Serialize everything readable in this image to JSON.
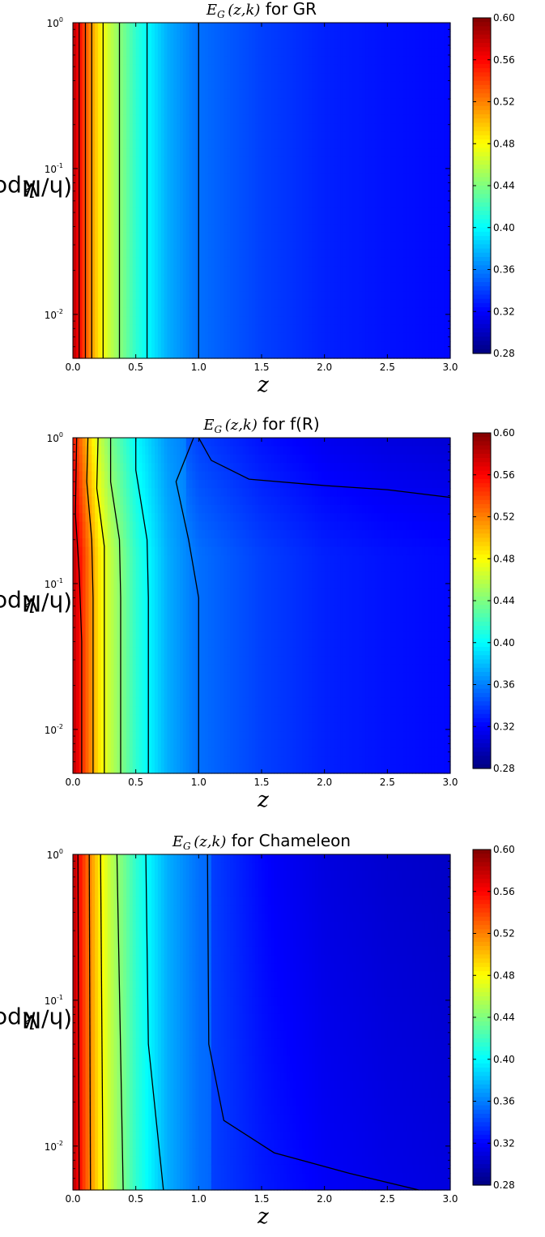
{
  "chart_data": [
    {
      "type": "heatmap",
      "title_math": "E",
      "title_sub": "G",
      "title_args": "(z,k)",
      "title_text": "for  GR",
      "xlabel": "z",
      "ylabel_var": "k",
      "ylabel_unit": "(h/Mpc)",
      "xlim": [
        0.0,
        3.0
      ],
      "ylim": [
        0.005,
        1.0
      ],
      "yscale": "log",
      "x_ticks": [
        "0.0",
        "0.5",
        "1.0",
        "1.5",
        "2.0",
        "2.5",
        "3.0"
      ],
      "y_tick_bases": [
        "10",
        "10",
        "10"
      ],
      "y_tick_exps": [
        "0",
        "-1",
        "-2"
      ],
      "colorbar_range": [
        0.28,
        0.6
      ],
      "colorbar_ticks": [
        "0.60",
        "0.56",
        "0.52",
        "0.48",
        "0.44",
        "0.40",
        "0.36",
        "0.32",
        "0.28"
      ],
      "contour_lines_z": [
        0.05,
        0.1,
        0.15,
        0.24,
        0.37,
        0.59,
        1.0
      ],
      "field_z": [
        0.0,
        0.05,
        0.1,
        0.2,
        0.3,
        0.5,
        0.75,
        1.0,
        1.5,
        2.0,
        2.5,
        3.0
      ],
      "field_value": [
        0.585,
        0.56,
        0.535,
        0.49,
        0.46,
        0.415,
        0.375,
        0.355,
        0.34,
        0.33,
        0.325,
        0.322
      ],
      "colormap": "jet"
    },
    {
      "type": "heatmap",
      "title_math": "E",
      "title_sub": "G",
      "title_args": "(z,k)",
      "title_text": "for f(R)",
      "xlabel": "z",
      "ylabel_var": "k",
      "ylabel_unit": "(h/Mpc)",
      "xlim": [
        0.0,
        3.0
      ],
      "ylim": [
        0.005,
        1.0
      ],
      "yscale": "log",
      "x_ticks": [
        "0.0",
        "0.5",
        "1.0",
        "1.5",
        "2.0",
        "2.5",
        "3.0"
      ],
      "y_tick_bases": [
        "10",
        "10",
        "10"
      ],
      "y_tick_exps": [
        "0",
        "-1",
        "-2"
      ],
      "colorbar_range": [
        0.28,
        0.6
      ],
      "colorbar_ticks": [
        "0.60",
        "0.56",
        "0.52",
        "0.48",
        "0.44",
        "0.40",
        "0.36",
        "0.32",
        "0.28"
      ],
      "colormap": "jet"
    },
    {
      "type": "heatmap",
      "title_math": "E",
      "title_sub": "G",
      "title_args": "(z,k)",
      "title_text": "for Chameleon",
      "xlabel": "z",
      "ylabel_var": "k",
      "ylabel_unit": "(h/Mpc)",
      "xlim": [
        0.0,
        3.0
      ],
      "ylim": [
        0.005,
        1.0
      ],
      "yscale": "log",
      "x_ticks": [
        "0.0",
        "0.5",
        "1.0",
        "1.5",
        "2.0",
        "2.5",
        "3.0"
      ],
      "y_tick_bases": [
        "10",
        "10",
        "10"
      ],
      "y_tick_exps": [
        "0",
        "-1",
        "-2"
      ],
      "colorbar_range": [
        0.28,
        0.6
      ],
      "colorbar_ticks": [
        "0.60",
        "0.56",
        "0.52",
        "0.48",
        "0.44",
        "0.40",
        "0.36",
        "0.32",
        "0.28"
      ],
      "colormap": "jet"
    }
  ]
}
